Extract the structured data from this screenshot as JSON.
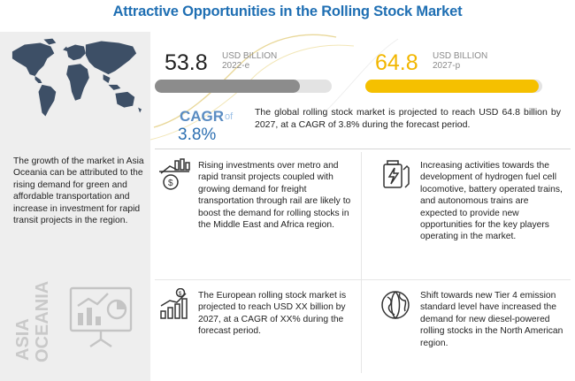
{
  "title": "Attractive Opportunities in the Rolling Stock Market",
  "left_panel": {
    "description": "The growth of the market in Asia Oceania can be attributed to the rising demand for green and affordable transportation and increase in investment for rapid transit projects in the region.",
    "region_label_line1": "ASIA",
    "region_label_line2": "OCEANIA"
  },
  "stats": {
    "current": {
      "value": "53.8",
      "unit": "USD BILLION",
      "year": "2022-e"
    },
    "projected": {
      "value": "64.8",
      "unit": "USD BILLION",
      "year": "2027-p"
    },
    "colors": {
      "current_bar": "#8c8c8c",
      "projected_bar": "#f5c000",
      "accent": "#f2b600"
    }
  },
  "cagr": {
    "label": "CAGR",
    "of": "of",
    "value": "3.8%"
  },
  "summary": "The global rolling stock market is projected to reach USD 64.8 billion by 2027, at a CAGR of 3.8% during the forecast period.",
  "points": [
    {
      "icon": "investment-chart-icon",
      "text": "Rising investments over metro and rapid transit projects coupled with growing demand for freight transportation through rail are likely to boost the demand for rolling stocks in the Middle East and Africa region."
    },
    {
      "icon": "fuel-cell-battery-icon",
      "text": "Increasing activities towards the development of hydrogen fuel cell locomotive, battery operated trains, and autonomous trains are expected to provide new opportunities for the key players operating in the market."
    },
    {
      "icon": "growth-bars-dollar-icon",
      "text": "The European rolling stock market is projected to reach USD XX billion by 2027, at a CAGR of XX% during the forecast period."
    },
    {
      "icon": "globe-icon",
      "text": "Shift towards new Tier 4 emission standard level have increased the demand for new diesel-powered rolling stocks in the North American region."
    }
  ]
}
